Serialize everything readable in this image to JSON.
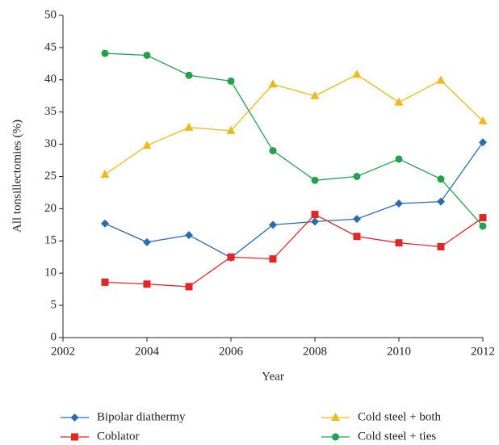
{
  "chart_data": {
    "type": "line",
    "xlabel": "Year",
    "ylabel": "All tonsillectomies (%)",
    "x": [
      2003,
      2004,
      2005,
      2006,
      2007,
      2008,
      2009,
      2010,
      2011,
      2012
    ],
    "xlim": [
      2002,
      2012
    ],
    "xticks": [
      2002,
      2004,
      2006,
      2008,
      2010,
      2012
    ],
    "ylim": [
      0,
      50
    ],
    "yticks": [
      0,
      5,
      10,
      15,
      20,
      25,
      30,
      35,
      40,
      45,
      50
    ],
    "grid": false,
    "legend": "bottom",
    "series": [
      {
        "name": "Bipolar diathermy",
        "color": "#2b6cb0",
        "marker": "diamond",
        "values": [
          17.7,
          14.8,
          15.9,
          12.4,
          17.5,
          18.0,
          18.4,
          20.8,
          21.1,
          30.3
        ]
      },
      {
        "name": "Coblator",
        "color": "#e32526",
        "marker": "square",
        "values": [
          8.6,
          8.3,
          7.9,
          12.5,
          12.2,
          19.1,
          15.7,
          14.7,
          14.1,
          18.6
        ]
      },
      {
        "name": "Cold steel + both",
        "color": "#f0b917",
        "marker": "triangle",
        "values": [
          25.3,
          29.8,
          32.6,
          32.1,
          39.3,
          37.5,
          40.8,
          36.5,
          39.9,
          33.6
        ]
      },
      {
        "name": "Cold steel + ties",
        "color": "#22a24a",
        "marker": "circle",
        "values": [
          44.1,
          43.8,
          40.7,
          39.8,
          29.0,
          24.4,
          25.0,
          27.7,
          24.6,
          17.3
        ]
      }
    ]
  }
}
